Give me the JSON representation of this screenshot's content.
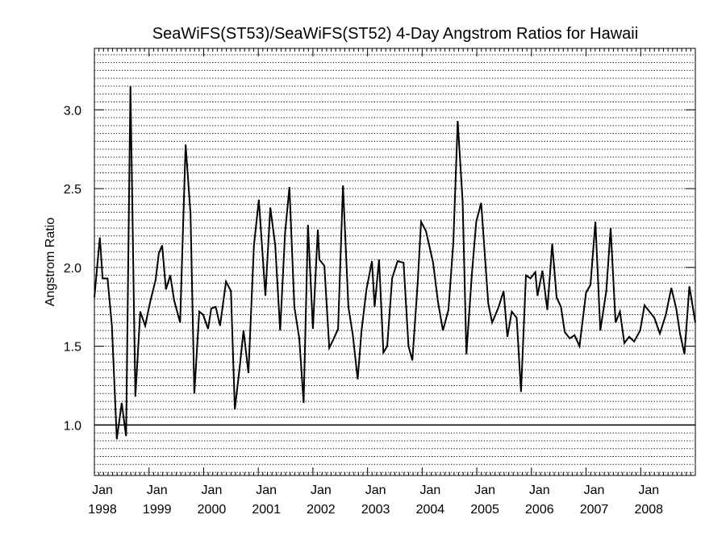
{
  "chart_data": {
    "type": "line",
    "title": "SeaWiFS(ST53)/SeaWiFS(ST52) 4-Day Angstrom Ratios for Hawaii",
    "xlabel": "",
    "ylabel": "Angstrom Ratio",
    "xlim": [
      1998,
      2009
    ],
    "ylim": [
      0.68,
      3.39
    ],
    "grid": "horizontal dotted every 0.05",
    "reference_line": 1.0,
    "y_ticks": [
      {
        "v": 1.0,
        "label": "1.0"
      },
      {
        "v": 1.5,
        "label": "1.5"
      },
      {
        "v": 2.0,
        "label": "2.0"
      },
      {
        "v": 2.5,
        "label": "2.5"
      },
      {
        "v": 3.0,
        "label": "3.0"
      }
    ],
    "x_ticks": [
      {
        "v": 1998,
        "month": "Jan",
        "year": "1998"
      },
      {
        "v": 1999,
        "month": "Jan",
        "year": "1999"
      },
      {
        "v": 2000,
        "month": "Jan",
        "year": "2000"
      },
      {
        "v": 2001,
        "month": "Jan",
        "year": "2001"
      },
      {
        "v": 2002,
        "month": "Jan",
        "year": "2002"
      },
      {
        "v": 2003,
        "month": "Jan",
        "year": "2003"
      },
      {
        "v": 2004,
        "month": "Jan",
        "year": "2004"
      },
      {
        "v": 2005,
        "month": "Jan",
        "year": "2005"
      },
      {
        "v": 2006,
        "month": "Jan",
        "year": "2006"
      },
      {
        "v": 2007,
        "month": "Jan",
        "year": "2007"
      },
      {
        "v": 2008,
        "month": "Jan",
        "year": "2008"
      }
    ],
    "series": [
      {
        "name": "Angstrom Ratio",
        "color": "#000000",
        "x": [
          1998.0,
          1998.1,
          1998.15,
          1998.24,
          1998.32,
          1998.41,
          1998.5,
          1998.58,
          1998.66,
          1998.75,
          1998.84,
          1998.93,
          1999.02,
          1999.12,
          1999.18,
          1999.24,
          1999.31,
          1999.39,
          1999.46,
          1999.57,
          1999.67,
          1999.76,
          1999.83,
          1999.92,
          1999.99,
          2000.08,
          2000.14,
          2000.22,
          2000.3,
          2000.41,
          2000.5,
          2000.57,
          2000.66,
          2000.73,
          2000.82,
          2000.92,
          2001.01,
          2001.13,
          2001.22,
          2001.31,
          2001.4,
          2001.49,
          2001.57,
          2001.66,
          2001.75,
          2001.83,
          2001.91,
          2002.0,
          2002.09,
          2002.12,
          2002.21,
          2002.3,
          2002.37,
          2002.46,
          2002.55,
          2002.65,
          2002.73,
          2002.82,
          2002.89,
          2002.98,
          2003.08,
          2003.13,
          2003.21,
          2003.29,
          2003.36,
          2003.45,
          2003.55,
          2003.66,
          2003.75,
          2003.82,
          2003.92,
          2003.98,
          2004.07,
          2004.2,
          2004.29,
          2004.38,
          2004.48,
          2004.57,
          2004.65,
          2004.74,
          2004.81,
          2004.91,
          2004.99,
          2005.08,
          2005.15,
          2005.21,
          2005.28,
          2005.39,
          2005.49,
          2005.56,
          2005.64,
          2005.73,
          2005.81,
          2005.9,
          2005.98,
          2006.07,
          2006.11,
          2006.2,
          2006.29,
          2006.38,
          2006.46,
          2006.54,
          2006.61,
          2006.7,
          2006.79,
          2006.88,
          2007.0,
          2007.08,
          2007.17,
          2007.26,
          2007.37,
          2007.45,
          2007.54,
          2007.62,
          2007.7,
          2007.79,
          2007.88,
          2007.99,
          2008.07,
          2008.16,
          2008.25,
          2008.35,
          2008.46,
          2008.56,
          2008.65,
          2008.72,
          2008.8,
          2008.89,
          2009.0
        ],
        "y": [
          1.81,
          2.19,
          1.93,
          1.93,
          1.63,
          0.91,
          1.14,
          0.93,
          3.15,
          1.18,
          1.72,
          1.63,
          1.78,
          1.92,
          2.09,
          2.14,
          1.86,
          1.95,
          1.79,
          1.65,
          2.78,
          2.34,
          1.2,
          1.72,
          1.7,
          1.61,
          1.74,
          1.75,
          1.63,
          1.91,
          1.85,
          1.1,
          1.37,
          1.6,
          1.33,
          2.14,
          2.43,
          1.82,
          2.38,
          2.14,
          1.6,
          2.22,
          2.51,
          1.75,
          1.55,
          1.14,
          2.27,
          1.61,
          2.24,
          2.05,
          2.01,
          1.49,
          1.54,
          1.61,
          2.52,
          1.75,
          1.57,
          1.29,
          1.6,
          1.86,
          2.04,
          1.75,
          2.05,
          1.46,
          1.5,
          1.93,
          2.04,
          2.03,
          1.5,
          1.41,
          1.91,
          2.29,
          2.23,
          2.03,
          1.78,
          1.6,
          1.73,
          2.16,
          2.93,
          2.42,
          1.45,
          1.96,
          2.29,
          2.41,
          2.06,
          1.77,
          1.65,
          1.74,
          1.85,
          1.56,
          1.72,
          1.68,
          1.21,
          1.95,
          1.93,
          1.97,
          1.82,
          1.98,
          1.73,
          2.15,
          1.81,
          1.75,
          1.59,
          1.55,
          1.57,
          1.5,
          1.84,
          1.89,
          2.29,
          1.6,
          1.85,
          2.25,
          1.65,
          1.72,
          1.52,
          1.56,
          1.53,
          1.6,
          1.76,
          1.72,
          1.68,
          1.58,
          1.7,
          1.87,
          1.74,
          1.58,
          1.45,
          1.88,
          1.65
        ]
      }
    ]
  }
}
